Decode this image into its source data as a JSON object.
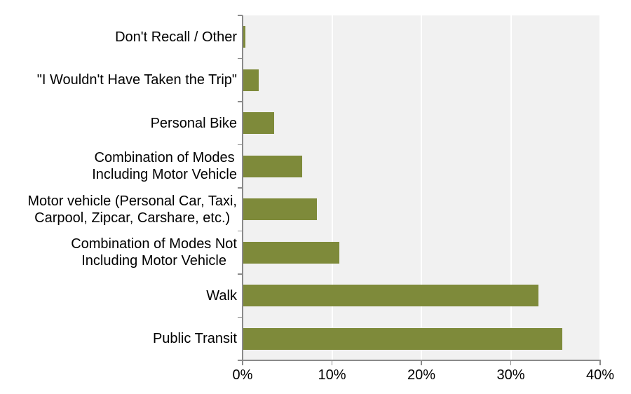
{
  "chart_data": {
    "type": "bar",
    "orientation": "horizontal",
    "title": "",
    "xlabel": "",
    "ylabel": "",
    "categories": [
      "Don't Recall / Other",
      "\"I Wouldn't Have Taken the Trip\"",
      "Personal Bike",
      "Combination of Modes\nIncluding Motor Vehicle",
      "Motor vehicle (Personal Car, Taxi,\nCarpool, Zipcar, Carshare, etc.)",
      "Combination of Modes Not\nIncluding Motor Vehicle",
      "Walk",
      "Public Transit"
    ],
    "values": [
      0.3,
      1.8,
      3.5,
      6.7,
      8.3,
      10.8,
      33.1,
      35.8
    ],
    "value_unit": "%",
    "xlim": [
      0,
      40
    ],
    "x_ticks": [
      0,
      10,
      20,
      30,
      40
    ],
    "x_tick_labels": [
      "0%",
      "10%",
      "20%",
      "30%",
      "40%"
    ],
    "grid": "vertical gridlines, white on gray plot background",
    "legend": "none",
    "colors": {
      "bar": "#7E8A3A",
      "plot_background": "#F1F1F1",
      "gridline": "#FFFFFF",
      "axis": "#8A8A8A",
      "text": "#000000",
      "page_background": "#FFFFFF"
    }
  }
}
